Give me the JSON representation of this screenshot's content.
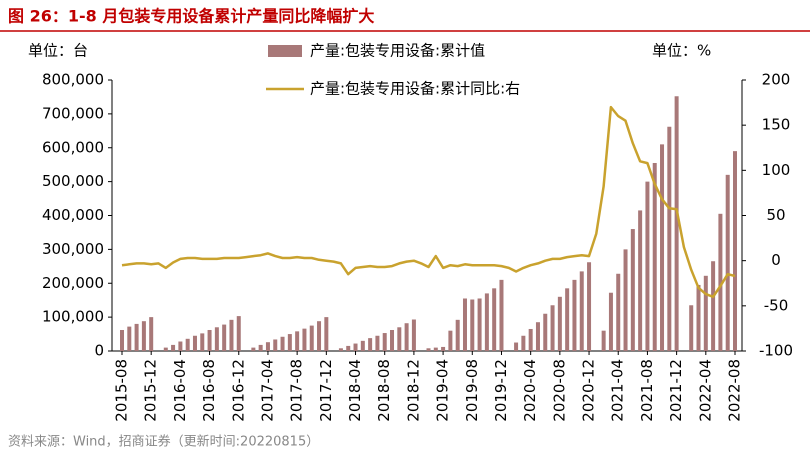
{
  "chart_data": {
    "type": "bar_line",
    "title": "图 26：1-8 月包装专用设备累计产量同比降幅扩大",
    "y_unit_label": "单位：台",
    "y2_unit_label": "单位：%",
    "source": "资料来源：Wind，招商证券（更新时间:20220815）",
    "categories": [
      "2015-08",
      null,
      null,
      null,
      "2015-12",
      null,
      null,
      null,
      "2016-04",
      null,
      null,
      null,
      "2016-08",
      null,
      null,
      null,
      "2016-12",
      null,
      null,
      null,
      "2017-04",
      null,
      null,
      null,
      "2017-08",
      null,
      null,
      null,
      "2017-12",
      null,
      null,
      null,
      "2018-04",
      null,
      null,
      null,
      "2018-08",
      null,
      null,
      null,
      "2018-12",
      null,
      null,
      null,
      "2019-04",
      null,
      null,
      null,
      "2019-08",
      null,
      null,
      null,
      "2019-12",
      null,
      null,
      null,
      "2020-04",
      null,
      null,
      null,
      "2020-08",
      null,
      null,
      null,
      "2020-12",
      null,
      null,
      null,
      "2021-04",
      null,
      null,
      null,
      "2021-08",
      null,
      null,
      null,
      "2021-12",
      null,
      null,
      null,
      "2022-04",
      null,
      null,
      null,
      "2022-08"
    ],
    "series": [
      {
        "name": "产量:包装专用设备:累计值",
        "type": "bar",
        "color": "#a87878",
        "axis": "y",
        "values": [
          62000,
          72000,
          80000,
          88000,
          100000,
          null,
          10000,
          18000,
          28000,
          36000,
          45000,
          52000,
          62000,
          70000,
          78000,
          92000,
          103000,
          null,
          10000,
          18000,
          26000,
          34000,
          42000,
          50000,
          58000,
          66000,
          75000,
          88000,
          100000,
          null,
          8000,
          15000,
          22000,
          30000,
          38000,
          45000,
          53000,
          62000,
          70000,
          82000,
          93000,
          null,
          8000,
          10000,
          12000,
          60000,
          92000,
          155000,
          152000,
          155000,
          170000,
          185000,
          210000,
          null,
          25000,
          45000,
          65000,
          85000,
          110000,
          135000,
          160000,
          185000,
          210000,
          235000,
          262000,
          null,
          60000,
          172000,
          228000,
          300000,
          360000,
          415000,
          500000,
          555000,
          610000,
          662000,
          752000,
          null,
          135000,
          195000,
          222000,
          265000,
          405000,
          520000,
          590000
        ]
      },
      {
        "name": "产量:包装专用设备:累计同比:右",
        "type": "line",
        "color": "#c9a22e",
        "axis": "y2",
        "values": [
          -5,
          -4,
          -3,
          -3,
          -4,
          -3,
          -8,
          -2,
          2,
          3,
          3,
          2,
          2,
          2,
          3,
          3,
          3,
          4,
          5,
          6,
          8,
          5,
          3,
          3,
          4,
          3,
          3,
          1,
          0,
          -1,
          -3,
          -15,
          -8,
          -7,
          -6,
          -7,
          -7,
          -6,
          -3,
          -1,
          0,
          -3,
          -7,
          5,
          -8,
          -5,
          -6,
          -4,
          -5,
          -5,
          -5,
          -5,
          -6,
          -8,
          -12,
          -8,
          -5,
          -3,
          0,
          2,
          2,
          4,
          5,
          6,
          5,
          30,
          82,
          170,
          160,
          155,
          130,
          110,
          108,
          85,
          68,
          58,
          57,
          15,
          -10,
          -30,
          -37,
          -40,
          -28,
          -15,
          -17
        ]
      }
    ],
    "ylim": [
      0,
      800000
    ],
    "yticks": [
      0,
      {
        "value": 100000,
        "label": "100,000"
      },
      {
        "value": 200000,
        "label": "200,000"
      },
      {
        "value": 300000,
        "label": "300,000"
      },
      {
        "value": 400000,
        "label": "400,000"
      },
      {
        "value": 500000,
        "label": "500,000"
      },
      {
        "value": 600000,
        "label": "600,000"
      },
      {
        "value": 700000,
        "label": "700,000"
      },
      {
        "value": 800000,
        "label": "800,000"
      }
    ],
    "y2lim": [
      -100,
      200
    ],
    "y2ticks": [
      -100,
      -50,
      0,
      50,
      100,
      150,
      200
    ]
  }
}
